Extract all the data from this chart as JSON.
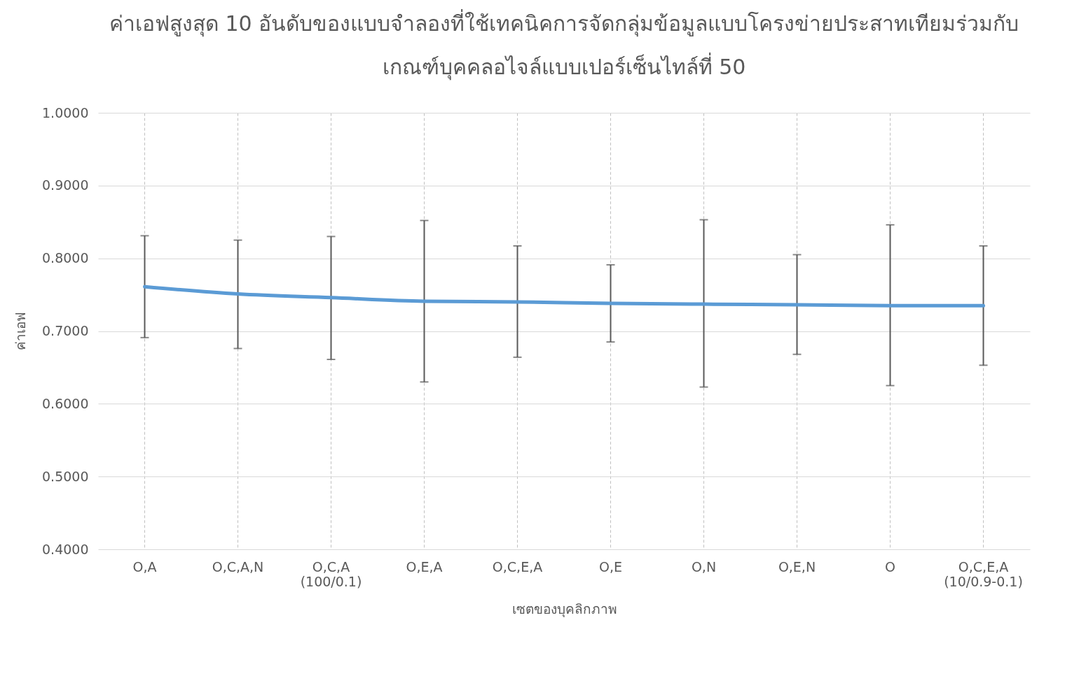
{
  "chart_data": {
    "type": "line",
    "title": "ค่าเอฟสูงสุด 10 อันดับของแบบจำลองที่ใช้เทคนิคการจัดกลุ่มข้อมูลแบบโครงข่ายประสาทเทียมร่วมกับ\nเกณฑ์บุคคลอไจล์แบบเปอร์เซ็นไทล์ที่ 50",
    "xlabel": "เซตของบุคลิกภาพ",
    "ylabel": "ค่าเอฟ",
    "categories": [
      "O,A",
      "O,C,A,N",
      "O,C,A (100/0.1)",
      "O,E,A",
      "O,C,E,A",
      "O,E",
      "O,N",
      "O,E,N",
      "O",
      "O,C,E,A (10/0.9-0.1)"
    ],
    "series": [
      {
        "color": "#5b9bd5",
        "values": [
          0.761,
          0.751,
          0.746,
          0.741,
          0.74,
          0.738,
          0.737,
          0.736,
          0.735,
          0.735
        ],
        "errors": [
          [
            0.691,
            0.831
          ],
          [
            0.676,
            0.825
          ],
          [
            0.661,
            0.83
          ],
          [
            0.63,
            0.852
          ],
          [
            0.664,
            0.817
          ],
          [
            0.685,
            0.791
          ],
          [
            0.623,
            0.853
          ],
          [
            0.668,
            0.805
          ],
          [
            0.625,
            0.846
          ],
          [
            0.653,
            0.817
          ]
        ]
      }
    ],
    "ylim": [
      0.4,
      1.0
    ],
    "yticks": [
      {
        "value": 0.4,
        "label": "0.4000"
      },
      {
        "value": 0.5,
        "label": "0.5000"
      },
      {
        "value": 0.6,
        "label": "0.6000"
      },
      {
        "value": 0.7,
        "label": "0.7000"
      },
      {
        "value": 0.8,
        "label": "0.8000"
      },
      {
        "value": 0.9,
        "label": "0.9000"
      },
      {
        "value": 1.0,
        "label": "1.0000"
      }
    ],
    "grid": true,
    "legend": false
  }
}
